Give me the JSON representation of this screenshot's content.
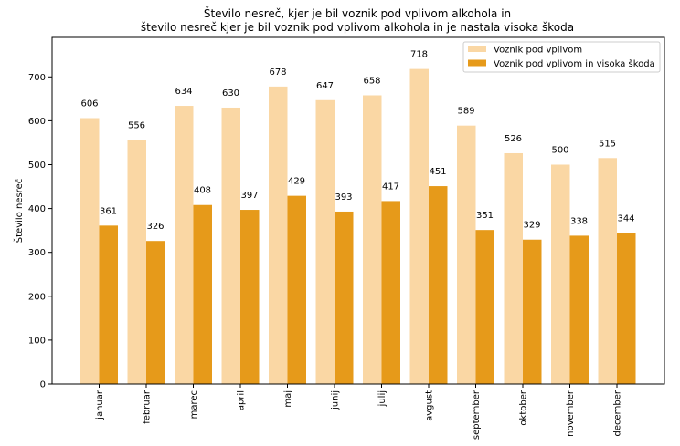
{
  "chart_data": {
    "type": "bar",
    "title": [
      "Število nesreč, kjer je bil voznik pod vplivom alkohola in",
      "število nesreč kjer je bil voznik pod vplivom alkohola in je nastala visoka škoda"
    ],
    "ylabel": "Število nesreč",
    "xlabel": "",
    "ylim": [
      0,
      790
    ],
    "yticks": [
      0,
      100,
      200,
      300,
      400,
      500,
      600,
      700
    ],
    "categories": [
      "januar",
      "februar",
      "marec",
      "april",
      "maj",
      "junij",
      "julij",
      "avgust",
      "september",
      "oktober",
      "november",
      "december"
    ],
    "series": [
      {
        "name": "Voznik pod vplivom",
        "color": "#fad7a4",
        "values": [
          606,
          556,
          634,
          630,
          678,
          647,
          658,
          718,
          589,
          526,
          500,
          515
        ]
      },
      {
        "name": "Voznik pod vplivom in visoka škoda",
        "color": "#e69a1a",
        "values": [
          361,
          326,
          408,
          397,
          429,
          393,
          417,
          451,
          351,
          329,
          338,
          344
        ]
      }
    ],
    "legend_position": "top-right",
    "grid": false
  }
}
